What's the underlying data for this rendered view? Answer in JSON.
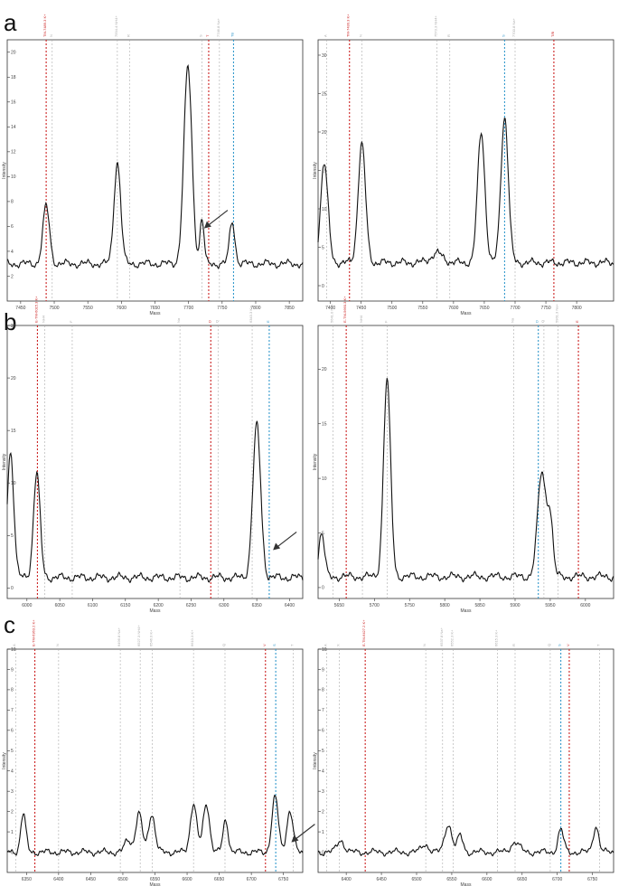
{
  "panel_labels": [
    "a",
    "b",
    "c"
  ],
  "colors": {
    "trace": "#111111",
    "marker_red": "#cc2222",
    "marker_blue": "#3399cc",
    "marker_gray": "#aaaaaa",
    "axis": "#333333"
  },
  "chart_data": [
    {
      "type": "line",
      "panel": "a",
      "side": "left",
      "xlabel": "Mass",
      "ylabel": "Intensity",
      "xlim": [
        7430,
        7870
      ],
      "ylim": [
        0,
        21
      ],
      "xticks": [
        7450,
        7500,
        7550,
        7600,
        7650,
        7700,
        7750,
        7800,
        7850
      ],
      "yticks": [
        2,
        4,
        6,
        8,
        10,
        12,
        14,
        16,
        18,
        20
      ],
      "baseline": 3,
      "peaks": [
        [
          7488,
          4.6,
          5
        ],
        [
          7594,
          8.2,
          5
        ],
        [
          7699,
          15.8,
          6
        ],
        [
          7765,
          3.4,
          4
        ],
        [
          7720,
          3.6,
          3
        ]
      ],
      "markers": [
        {
          "x": 7488,
          "color": "red",
          "label": "TM-7489.3 K+"
        },
        {
          "x": 7497,
          "color": "gray",
          "label": "N"
        },
        {
          "x": 7594,
          "color": "gray",
          "label": "7594.4 NH4+"
        },
        {
          "x": 7612,
          "color": "gray",
          "label": "R"
        },
        {
          "x": 7720,
          "color": "gray",
          "label": "S"
        },
        {
          "x": 7730,
          "color": "red",
          "label": "T"
        },
        {
          "x": 7746,
          "color": "gray",
          "label": "7746.8 Na+"
        },
        {
          "x": 7767,
          "color": "blue",
          "label": "TB"
        }
      ],
      "annotation": "arrow"
    },
    {
      "type": "line",
      "panel": "a",
      "side": "right",
      "xlabel": "Mass",
      "ylabel": "Intensity",
      "xlim": [
        7380,
        7860
      ],
      "ylim": [
        -2,
        32
      ],
      "xticks": [
        7400,
        7450,
        7500,
        7550,
        7600,
        7650,
        7700,
        7750,
        7800
      ],
      "yticks": [
        0,
        5,
        10,
        15,
        20,
        25,
        30
      ],
      "baseline": 3,
      "peaks": [
        [
          7390,
          13,
          6
        ],
        [
          7451,
          15.5,
          6
        ],
        [
          7573,
          1.2,
          10
        ],
        [
          7645,
          17,
          6
        ],
        [
          7683,
          19,
          6
        ]
      ],
      "markers": [
        {
          "x": 7394,
          "color": "gray",
          "label": "A"
        },
        {
          "x": 7431,
          "color": "red",
          "label": "TM-7430.3 K+"
        },
        {
          "x": 7451,
          "color": "gray",
          "label": "N"
        },
        {
          "x": 7573,
          "color": "gray",
          "label": "7573.3 NH4+"
        },
        {
          "x": 7594,
          "color": "gray",
          "label": "R"
        },
        {
          "x": 7683,
          "color": "blue",
          "label": "S"
        },
        {
          "x": 7700,
          "color": "gray",
          "label": "7700.8 Na+"
        },
        {
          "x": 7763,
          "color": "red",
          "label": "T/B"
        }
      ]
    },
    {
      "type": "line",
      "panel": "b",
      "side": "left",
      "xlabel": "Mass",
      "ylabel": "Intensity",
      "xlim": [
        5970,
        6420
      ],
      "ylim": [
        -1,
        25
      ],
      "xticks": [
        6000,
        6050,
        6100,
        6150,
        6200,
        6250,
        6300,
        6350,
        6400
      ],
      "yticks": [
        0,
        5,
        10,
        15,
        20,
        25
      ],
      "baseline": 1,
      "peaks": [
        [
          5975,
          12,
          5
        ],
        [
          6015,
          10,
          5
        ],
        [
          6350,
          14.5,
          6
        ]
      ],
      "markers": [
        {
          "x": 6016,
          "color": "red",
          "label": "E-TM-6015.3 K+"
        },
        {
          "x": 6027,
          "color": "gray",
          "label": "NH4"
        },
        {
          "x": 6069,
          "color": "gray",
          "label": "F"
        },
        {
          "x": 6233,
          "color": "gray",
          "label": "Na"
        },
        {
          "x": 6280,
          "color": "red",
          "label": "D"
        },
        {
          "x": 6291,
          "color": "gray",
          "label": "Q"
        },
        {
          "x": 6343,
          "color": "gray",
          "label": "6343.3 K+"
        },
        {
          "x": 6369,
          "color": "blue",
          "label": "E"
        }
      ],
      "annotation": "arrow"
    },
    {
      "type": "line",
      "panel": "b",
      "side": "right",
      "xlabel": "Mass",
      "ylabel": "Intensity",
      "xlim": [
        5620,
        6040
      ],
      "ylim": [
        -1,
        24
      ],
      "xticks": [
        5650,
        5700,
        5750,
        5800,
        5850,
        5900,
        5950,
        6000
      ],
      "yticks": [
        0,
        5,
        10,
        15,
        20
      ],
      "baseline": 1,
      "peaks": [
        [
          5625,
          4,
          4
        ],
        [
          5718,
          18,
          5
        ],
        [
          5938,
          9.5,
          6
        ],
        [
          5950,
          5,
          4
        ]
      ],
      "markers": [
        {
          "x": 5641,
          "color": "gray",
          "label": "5641.0 Na+"
        },
        {
          "x": 5660,
          "color": "red",
          "label": "E-TM-5660.3 K+"
        },
        {
          "x": 5683,
          "color": "gray",
          "label": "NH4"
        },
        {
          "x": 5718,
          "color": "gray",
          "label": "F"
        },
        {
          "x": 5898,
          "color": "gray",
          "label": "Na"
        },
        {
          "x": 5933,
          "color": "blue",
          "label": "D"
        },
        {
          "x": 5941,
          "color": "gray",
          "label": "Q"
        },
        {
          "x": 5961,
          "color": "gray",
          "label": "5961.3 Na+"
        },
        {
          "x": 5990,
          "color": "red",
          "label": "E"
        }
      ]
    },
    {
      "type": "line",
      "panel": "c",
      "side": "left",
      "xlabel": "Mass",
      "ylabel": "Intensity",
      "xlim": [
        6320,
        6780
      ],
      "ylim": [
        -1,
        10
      ],
      "xticks": [
        6350,
        6400,
        6450,
        6500,
        6550,
        6600,
        6650,
        6700,
        6750
      ],
      "yticks": [
        0,
        1,
        2,
        3,
        4,
        5,
        6,
        7,
        8,
        9,
        10
      ],
      "baseline": 0,
      "peaks": [
        [
          6345,
          1.9,
          4
        ],
        [
          6508,
          0.6,
          5
        ],
        [
          6525,
          1.9,
          5
        ],
        [
          6545,
          1.9,
          5
        ],
        [
          6610,
          2.4,
          5
        ],
        [
          6630,
          2.4,
          5
        ],
        [
          6660,
          1.6,
          4
        ],
        [
          6737,
          2.7,
          5
        ],
        [
          6760,
          2.0,
          5
        ]
      ],
      "markers": [
        {
          "x": 6333,
          "color": "gray",
          "label": "A"
        },
        {
          "x": 6363,
          "color": "red",
          "label": "E-TM-6363.2 K+"
        },
        {
          "x": 6400,
          "color": "gray",
          "label": "N"
        },
        {
          "x": 6496,
          "color": "gray",
          "label": "6496.8 Na+"
        },
        {
          "x": 6527,
          "color": "gray",
          "label": "6527.3 NH4+"
        },
        {
          "x": 6546,
          "color": "gray",
          "label": "6546.0 K+"
        },
        {
          "x": 6610,
          "color": "gray",
          "label": "6610.3 K+"
        },
        {
          "x": 6659,
          "color": "gray",
          "label": "Q"
        },
        {
          "x": 6722,
          "color": "red",
          "label": "V"
        },
        {
          "x": 6738,
          "color": "blue",
          "label": "S"
        },
        {
          "x": 6765,
          "color": "gray",
          "label": "T"
        }
      ],
      "annotation": "arrow"
    },
    {
      "type": "line",
      "panel": "c",
      "side": "right",
      "xlabel": "Mass",
      "ylabel": "Intensity",
      "xlim": [
        6360,
        6780
      ],
      "ylim": [
        -1,
        10
      ],
      "xticks": [
        6400,
        6450,
        6500,
        6550,
        6600,
        6650,
        6700,
        6750
      ],
      "yticks": [
        0,
        1,
        2,
        3,
        4,
        5,
        6,
        7,
        8,
        9,
        10
      ],
      "baseline": 0,
      "peaks": [
        [
          6392,
          0.6,
          5
        ],
        [
          6512,
          0.4,
          5
        ],
        [
          6545,
          1.4,
          5
        ],
        [
          6562,
          0.8,
          4
        ],
        [
          6640,
          0.5,
          6
        ],
        [
          6705,
          1.1,
          4
        ],
        [
          6755,
          1.3,
          4
        ]
      ],
      "markers": [
        {
          "x": 6372,
          "color": "gray",
          "label": "A"
        },
        {
          "x": 6390,
          "color": "gray",
          "label": "X"
        },
        {
          "x": 6427,
          "color": "red",
          "label": "E-TM-6427.2 K+"
        },
        {
          "x": 6513,
          "color": "gray",
          "label": "N"
        },
        {
          "x": 6537,
          "color": "gray",
          "label": "6537.8 Na+"
        },
        {
          "x": 6552,
          "color": "gray",
          "label": "6552.3 K+"
        },
        {
          "x": 6615,
          "color": "gray",
          "label": "6615.3 K+"
        },
        {
          "x": 6640,
          "color": "gray",
          "label": "R"
        },
        {
          "x": 6690,
          "color": "gray",
          "label": "Q"
        },
        {
          "x": 6705,
          "color": "blue",
          "label": "S"
        },
        {
          "x": 6717,
          "color": "red",
          "label": "V"
        },
        {
          "x": 6760,
          "color": "gray",
          "label": "T"
        }
      ]
    }
  ]
}
